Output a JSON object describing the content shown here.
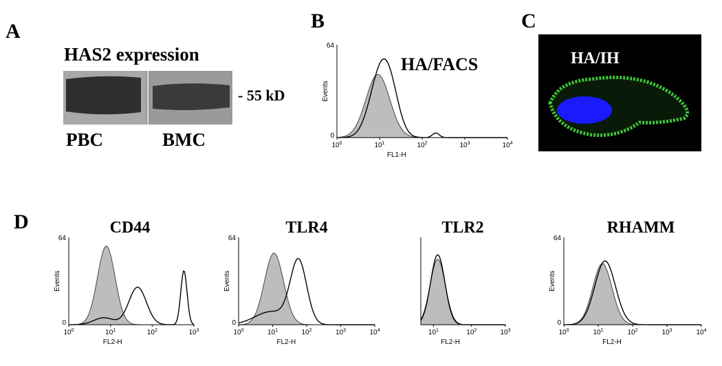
{
  "panel_a": {
    "letter": "A",
    "title": "HAS2 expression",
    "marker": "- 55 kD",
    "lanes": [
      "PBC",
      "BMC"
    ]
  },
  "panel_b": {
    "letter": "B",
    "title": "HA/FACS",
    "y_label": "Events",
    "y_ticks": [
      "64",
      "0"
    ],
    "x_label": "FL1-H",
    "x_tick_base": "10",
    "x_tick_exponents": [
      "0",
      "1",
      "2",
      "3",
      "4"
    ]
  },
  "panel_c": {
    "letter": "C",
    "title": "HA/IH"
  },
  "panel_d": {
    "letter": "D",
    "plots": [
      {
        "title": "CD44",
        "y_label": "Events",
        "y_ticks": [
          "64",
          "0"
        ],
        "x_label": "FL2-H",
        "x_tick_base": "10",
        "x_tick_exponents": [
          "0",
          "1",
          "2",
          "3"
        ]
      },
      {
        "title": "TLR4",
        "y_label": "Events",
        "y_ticks": [
          "64",
          "0"
        ],
        "x_label": "FL2-H",
        "x_tick_base": "10",
        "x_tick_exponents": [
          "0",
          "1",
          "2",
          "3",
          "4"
        ]
      },
      {
        "title": "TLR2",
        "x_label": "FL2-H",
        "x_tick_base": "10",
        "x_tick_exponents": [
          "1",
          "2",
          "3"
        ]
      },
      {
        "title": "RHAMM",
        "y_label": "Events",
        "y_ticks": [
          "64",
          "0"
        ],
        "x_label": "FL2-H",
        "x_tick_base": "10",
        "x_tick_exponents": [
          "0",
          "1",
          "2",
          "3",
          "4"
        ]
      }
    ]
  }
}
